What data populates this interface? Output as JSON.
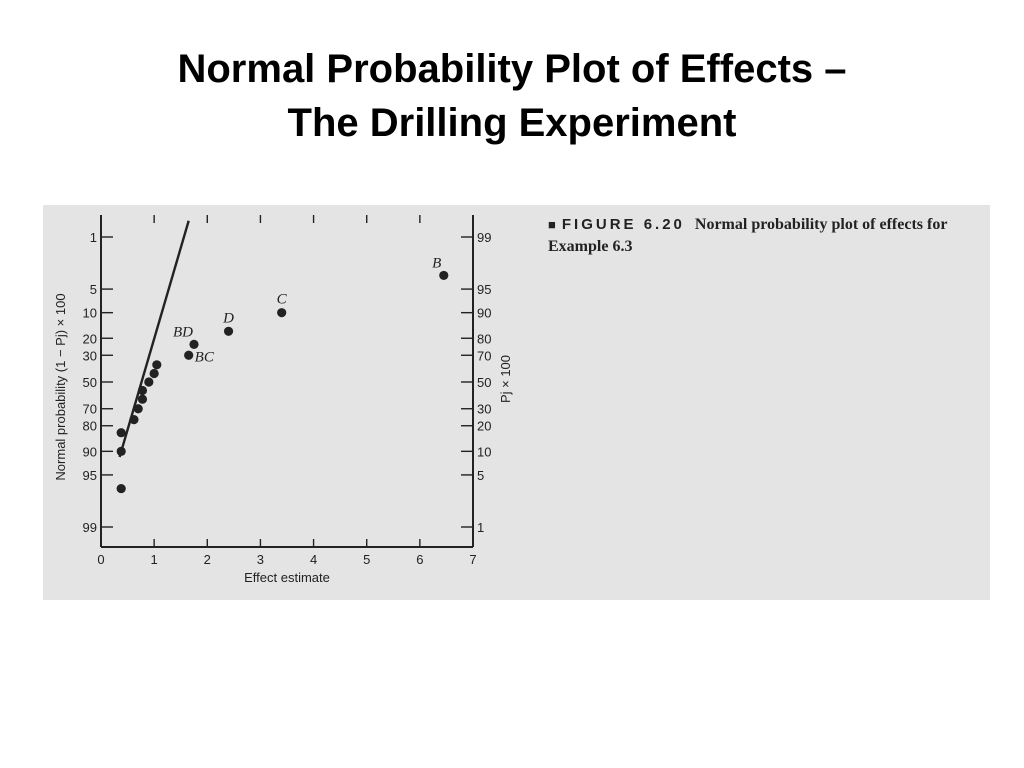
{
  "title": {
    "line1": "Normal Probability Plot of Effects –",
    "line2": "The Drilling Experiment"
  },
  "caption": {
    "marker": "■",
    "figure_label": "FIGURE 6.20",
    "text": "Normal probability plot of effects for Example 6.3"
  },
  "colors": {
    "panel_background": "#e4e4e4",
    "ink": "#222222"
  },
  "chart_data": {
    "type": "scatter",
    "title": "",
    "xlabel": "Effect estimate",
    "ylabel_left": "Normal probability (1 − Pj) × 100",
    "ylabel_right": "Pj × 100",
    "xlim": [
      0,
      7
    ],
    "x_ticks": [
      0,
      1,
      2,
      3,
      4,
      5,
      6,
      7
    ],
    "left_ticks": [
      1,
      5,
      10,
      20,
      30,
      50,
      70,
      80,
      90,
      95,
      99
    ],
    "right_ticks": [
      99,
      95,
      90,
      80,
      70,
      50,
      30,
      20,
      10,
      5,
      1
    ],
    "grid": false,
    "points": [
      {
        "x": 6.45,
        "p": 3.3,
        "label": "B"
      },
      {
        "x": 3.4,
        "p": 10,
        "label": "C"
      },
      {
        "x": 2.4,
        "p": 16.7,
        "label": "D"
      },
      {
        "x": 1.75,
        "p": 23.3,
        "label": "BD"
      },
      {
        "x": 1.65,
        "p": 30,
        "label": "BC"
      },
      {
        "x": 1.05,
        "p": 36.7,
        "label": ""
      },
      {
        "x": 1.0,
        "p": 43.3,
        "label": ""
      },
      {
        "x": 0.9,
        "p": 50,
        "label": ""
      },
      {
        "x": 0.78,
        "p": 56.7,
        "label": ""
      },
      {
        "x": 0.78,
        "p": 63.3,
        "label": ""
      },
      {
        "x": 0.7,
        "p": 70,
        "label": ""
      },
      {
        "x": 0.62,
        "p": 76.7,
        "label": ""
      },
      {
        "x": 0.38,
        "p": 83.3,
        "label": ""
      },
      {
        "x": 0.38,
        "p": 90,
        "label": ""
      },
      {
        "x": 0.38,
        "p": 96.7,
        "label": ""
      }
    ],
    "fit_line": {
      "x": [
        0.35,
        1.65
      ],
      "p": [
        91.5,
        0.6
      ]
    }
  }
}
